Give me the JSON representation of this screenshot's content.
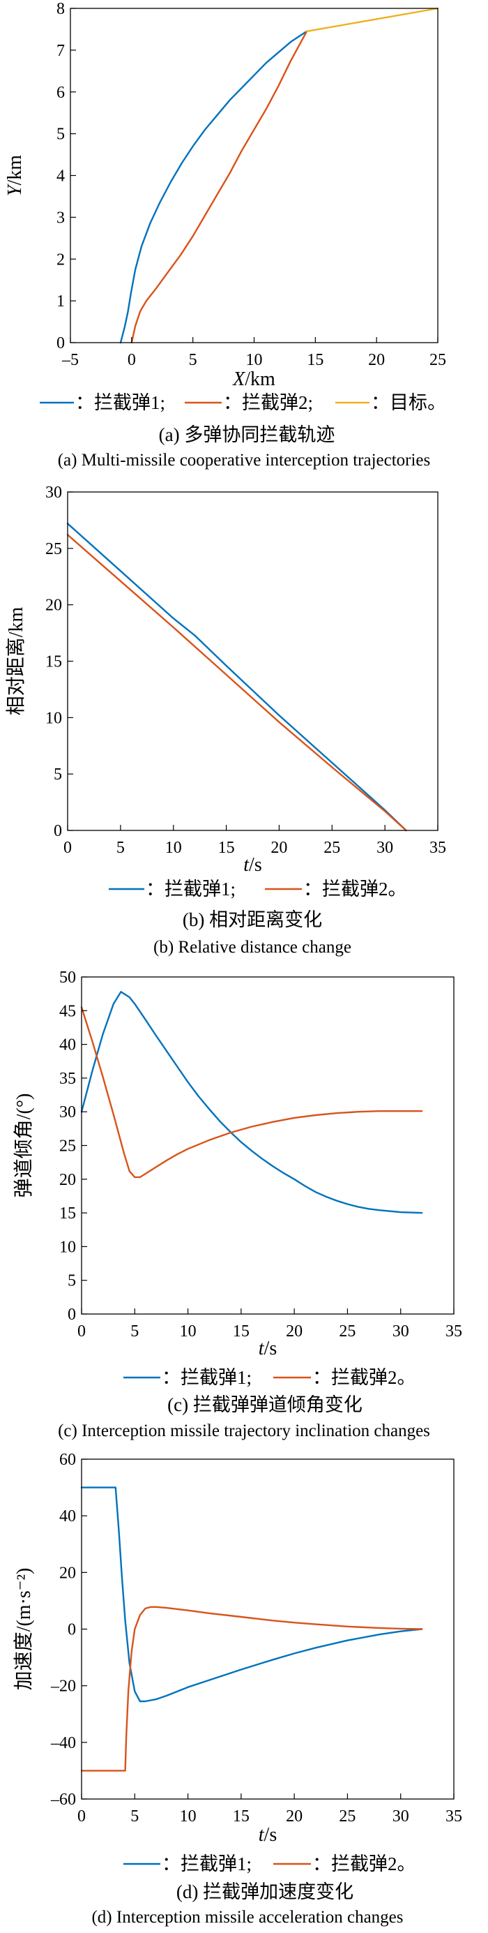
{
  "chart_data": [
    {
      "type": "line",
      "xlabel": "X/km",
      "ylabel": "Y/km",
      "xlim": [
        -5,
        25
      ],
      "ylim": [
        0,
        8
      ],
      "xticks": [
        "–5",
        "0",
        "5",
        "10",
        "15",
        "20",
        "25"
      ],
      "yticks": [
        "0",
        "1",
        "2",
        "3",
        "4",
        "5",
        "6",
        "7",
        "8"
      ],
      "grid": false,
      "legend_position": "bottom",
      "series": [
        {
          "legend": "：拦截弹1;",
          "color": "#0072BD",
          "x": [
            -0.9,
            -0.55,
            -0.3,
            -0.05,
            0.3,
            0.8,
            1.5,
            2.3,
            3.2,
            4.1,
            5,
            6,
            7,
            8,
            9,
            10,
            11,
            12,
            13,
            14.3
          ],
          "y": [
            0,
            0.4,
            0.75,
            1.2,
            1.75,
            2.3,
            2.85,
            3.35,
            3.85,
            4.3,
            4.7,
            5.1,
            5.45,
            5.8,
            6.1,
            6.4,
            6.7,
            6.95,
            7.2,
            7.45
          ]
        },
        {
          "legend": "：拦截弹2;",
          "color": "#D95319",
          "x": [
            0,
            0.3,
            0.7,
            1.2,
            2,
            3,
            4,
            5,
            6,
            7,
            8,
            9,
            10,
            11,
            12,
            13,
            14.3
          ],
          "y": [
            0,
            0.4,
            0.75,
            1.0,
            1.3,
            1.7,
            2.1,
            2.55,
            3.05,
            3.55,
            4.05,
            4.6,
            5.1,
            5.6,
            6.15,
            6.75,
            7.45
          ]
        },
        {
          "legend": "：目标。",
          "color": "#EDB120",
          "x": [
            14.3,
            25
          ],
          "y": [
            7.45,
            8.0
          ]
        }
      ],
      "caption_zh": "(a) 多弹协同拦截轨迹",
      "caption_en": "(a) Multi-missile cooperative interception trajectories"
    },
    {
      "type": "line",
      "xlabel": "t/s",
      "ylabel": "相对距离/km",
      "xlim": [
        0,
        35
      ],
      "ylim": [
        0,
        30
      ],
      "xticks": [
        "0",
        "5",
        "10",
        "15",
        "20",
        "25",
        "30",
        "35"
      ],
      "yticks": [
        "0",
        "5",
        "10",
        "15",
        "20",
        "25",
        "30"
      ],
      "grid": false,
      "legend_position": "bottom",
      "series": [
        {
          "legend": "：拦截弹1;",
          "color": "#0072BD",
          "x": [
            0,
            5,
            10,
            12,
            15,
            20,
            25,
            30,
            32
          ],
          "y": [
            27.2,
            23.0,
            18.8,
            17.3,
            14.6,
            10.2,
            6.0,
            1.8,
            0
          ]
        },
        {
          "legend": "：拦截弹2。",
          "color": "#D95319",
          "x": [
            0,
            5,
            10,
            15,
            20,
            25,
            30,
            32
          ],
          "y": [
            26.2,
            22.1,
            18.0,
            13.8,
            9.6,
            5.6,
            1.7,
            0
          ]
        }
      ],
      "caption_zh": "(b) 相对距离变化",
      "caption_en": "(b) Relative distance change"
    },
    {
      "type": "line",
      "xlabel": "t/s",
      "ylabel": "弹道倾角/(°)",
      "xlim": [
        0,
        35
      ],
      "ylim": [
        0,
        50
      ],
      "xticks": [
        "0",
        "5",
        "10",
        "15",
        "20",
        "25",
        "30",
        "35"
      ],
      "yticks": [
        "0",
        "5",
        "10",
        "15",
        "20",
        "25",
        "30",
        "35",
        "40",
        "45",
        "50"
      ],
      "grid": false,
      "legend_position": "bottom",
      "series": [
        {
          "legend": "：拦截弹1;",
          "color": "#0072BD",
          "x": [
            0,
            1,
            2,
            3,
            3.7,
            4.5,
            5,
            6,
            7,
            8,
            9,
            10,
            11,
            12,
            13,
            14,
            15,
            16,
            17,
            18,
            19,
            20,
            21,
            22,
            23,
            24,
            25,
            26,
            27,
            28,
            30,
            32
          ],
          "y": [
            30,
            36,
            41.5,
            46,
            47.8,
            47,
            46,
            43.7,
            41.3,
            39,
            36.7,
            34.4,
            32.3,
            30.4,
            28.6,
            27,
            25.5,
            24.2,
            23,
            21.9,
            20.9,
            20,
            19,
            18.1,
            17.4,
            16.8,
            16.3,
            15.9,
            15.6,
            15.4,
            15.1,
            15
          ]
        },
        {
          "legend": "：拦截弹2。",
          "color": "#D95319",
          "x": [
            0,
            1,
            2,
            3,
            4,
            4.5,
            5,
            5.5,
            6,
            7,
            8,
            9,
            10,
            12,
            14,
            16,
            18,
            20,
            22,
            24,
            26,
            28,
            30,
            32
          ],
          "y": [
            45.5,
            40.5,
            35.2,
            29.6,
            23.8,
            21.2,
            20.3,
            20.3,
            20.8,
            21.8,
            22.8,
            23.7,
            24.5,
            25.8,
            26.9,
            27.8,
            28.5,
            29.1,
            29.5,
            29.8,
            30,
            30.1,
            30.1,
            30.1
          ]
        }
      ],
      "caption_zh": "(c) 拦截弹弹道倾角变化",
      "caption_en": "(c) Interception missile trajectory inclination changes"
    },
    {
      "type": "line",
      "xlabel": "t/s",
      "ylabel": "加速度/(m·s⁻²)",
      "xlim": [
        0,
        35
      ],
      "ylim": [
        -60,
        60
      ],
      "xticks": [
        "0",
        "5",
        "10",
        "15",
        "20",
        "25",
        "30",
        "35"
      ],
      "yticks": [
        "–60",
        "–40",
        "–20",
        "0",
        "20",
        "40",
        "60"
      ],
      "grid": false,
      "legend_position": "bottom",
      "series": [
        {
          "legend": "：拦截弹1;",
          "color": "#0072BD",
          "x": [
            0,
            3.2,
            3.5,
            3.8,
            4.1,
            4.5,
            5,
            5.5,
            6,
            7,
            8,
            10,
            12,
            15,
            18,
            20,
            22,
            25,
            28,
            30,
            32
          ],
          "y": [
            50,
            50,
            35,
            18,
            3,
            -12,
            -22,
            -25.5,
            -25.5,
            -24.8,
            -23.5,
            -20.5,
            -18,
            -14.3,
            -10.8,
            -8.6,
            -6.6,
            -4,
            -1.9,
            -0.8,
            0
          ]
        },
        {
          "legend": "：拦截弹2。",
          "color": "#D95319",
          "x": [
            0,
            4.1,
            4.2,
            4.4,
            4.7,
            5,
            5.5,
            6,
            6.5,
            7,
            8,
            10,
            12,
            15,
            18,
            20,
            22,
            25,
            28,
            30,
            32
          ],
          "y": [
            -50,
            -50,
            -38,
            -22,
            -8,
            0,
            5,
            7.3,
            7.8,
            7.8,
            7.5,
            6.6,
            5.6,
            4.3,
            3,
            2.3,
            1.7,
            0.9,
            0.4,
            0.15,
            0
          ]
        }
      ],
      "caption_zh": "(d) 拦截弹加速度变化",
      "caption_en": "(d) Interception missile acceleration changes"
    }
  ]
}
